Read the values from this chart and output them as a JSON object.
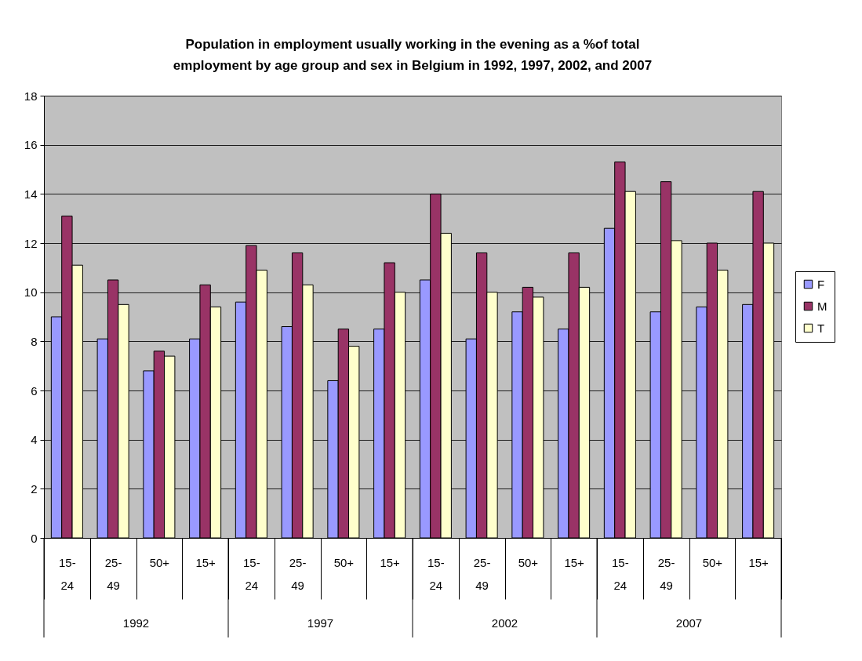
{
  "chart_data": {
    "type": "bar",
    "title": "Population in employment usually working in the evening as a %of total employment by age group and sex in Belgium in 1992, 1997, 2002, and 2007",
    "categories": [
      "15-24",
      "25-49",
      "50+",
      "15+",
      "15-24",
      "25-49",
      "50+",
      "15+",
      "15-24",
      "25-49",
      "50+",
      "15+",
      "15-24",
      "25-49",
      "50+",
      "15+"
    ],
    "annotations": [
      "1992",
      "1997",
      "2002",
      "2007"
    ],
    "series": [
      {
        "name": "F",
        "color": "#9999ff",
        "values": [
          9.0,
          8.1,
          6.8,
          8.1,
          9.6,
          8.6,
          6.4,
          8.5,
          10.5,
          8.1,
          9.2,
          8.5,
          12.6,
          9.2,
          9.4,
          9.5
        ]
      },
      {
        "name": "M",
        "color": "#993366",
        "values": [
          13.1,
          10.5,
          7.6,
          10.3,
          11.9,
          11.6,
          8.5,
          11.2,
          14.0,
          11.6,
          10.2,
          11.6,
          15.3,
          14.5,
          12.0,
          14.1
        ]
      },
      {
        "name": "T",
        "color": "#ffffcc",
        "values": [
          11.1,
          9.5,
          7.4,
          9.4,
          10.9,
          10.3,
          7.8,
          10.0,
          12.4,
          10.0,
          9.8,
          10.2,
          14.1,
          12.1,
          10.9,
          12.0
        ]
      }
    ],
    "ylim": [
      0,
      18
    ],
    "yticks": [
      0,
      2,
      4,
      6,
      8,
      10,
      12,
      14,
      16,
      18
    ],
    "grid": "y",
    "legend": "right"
  }
}
